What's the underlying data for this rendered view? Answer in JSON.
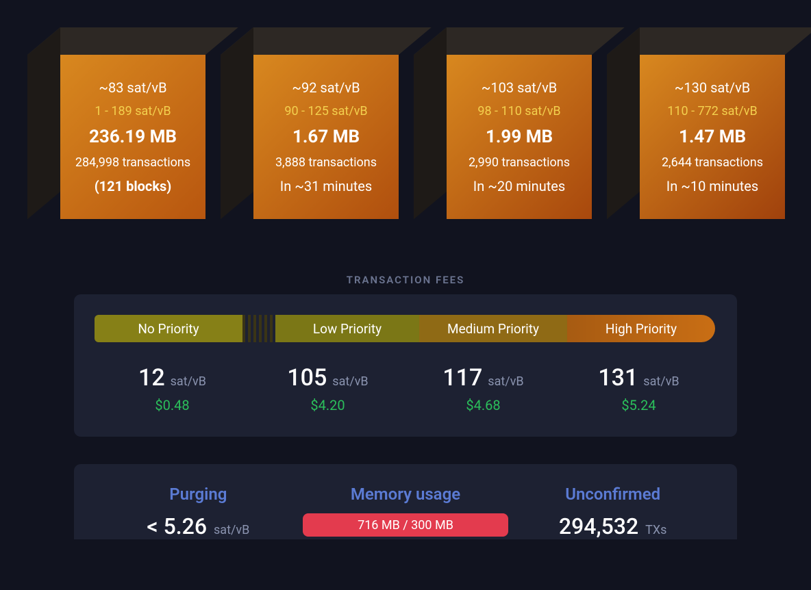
{
  "mempool_blocks": [
    {
      "median_fee": "~83 sat/vB",
      "fee_range": "1 - 189 sat/vB",
      "size": "236.19 MB",
      "tx_count": "284,998 transactions",
      "bottom_line": "(121 blocks)",
      "bottom_bold": true
    },
    {
      "median_fee": "~92 sat/vB",
      "fee_range": "90 - 125 sat/vB",
      "size": "1.67 MB",
      "tx_count": "3,888 transactions",
      "bottom_line": "In ~31 minutes",
      "bottom_bold": false
    },
    {
      "median_fee": "~103 sat/vB",
      "fee_range": "98 - 110 sat/vB",
      "size": "1.99 MB",
      "tx_count": "2,990 transactions",
      "bottom_line": "In ~20 minutes",
      "bottom_bold": false
    },
    {
      "median_fee": "~130 sat/vB",
      "fee_range": "110 - 772 sat/vB",
      "size": "1.47 MB",
      "tx_count": "2,644 transactions",
      "bottom_line": "In ~10 minutes",
      "bottom_bold": false
    }
  ],
  "fees": {
    "section_title": "TRANSACTION FEES",
    "priorities": {
      "no": {
        "label": "No Priority",
        "rate": "12",
        "unit": "sat/vB",
        "usd": "$0.48"
      },
      "low": {
        "label": "Low Priority",
        "rate": "105",
        "unit": "sat/vB",
        "usd": "$4.20"
      },
      "med": {
        "label": "Medium Priority",
        "rate": "117",
        "unit": "sat/vB",
        "usd": "$4.68"
      },
      "high": {
        "label": "High Priority",
        "rate": "131",
        "unit": "sat/vB",
        "usd": "$5.24"
      }
    }
  },
  "stats": {
    "purging": {
      "title": "Purging",
      "value": "< 5.26",
      "unit": "sat/vB"
    },
    "memory": {
      "title": "Memory usage",
      "bar_text": "716 MB / 300 MB"
    },
    "unconfirmed": {
      "title": "Unconfirmed",
      "value": "294,532",
      "unit": "TXs"
    }
  },
  "colors": {
    "bg": "#11131f",
    "panel": "#1d2132",
    "accent_yellow": "#f3d04e",
    "accent_green": "#2bbf5b",
    "accent_blue": "#5b7bd4",
    "memory_bar": "#e33b4e",
    "priority_no": "#868017",
    "priority_low": "#7b7716",
    "priority_med": "#8f6a15",
    "priority_high_from": "#a75b12",
    "priority_high_to": "#c96e14",
    "block_face_from": "#d8881f",
    "block_face_to": "#a8480d",
    "block_top": "#2d2824",
    "block_side": "#1e1a17",
    "muted_text": "#8a93af",
    "section_title": "#6b7490"
  }
}
